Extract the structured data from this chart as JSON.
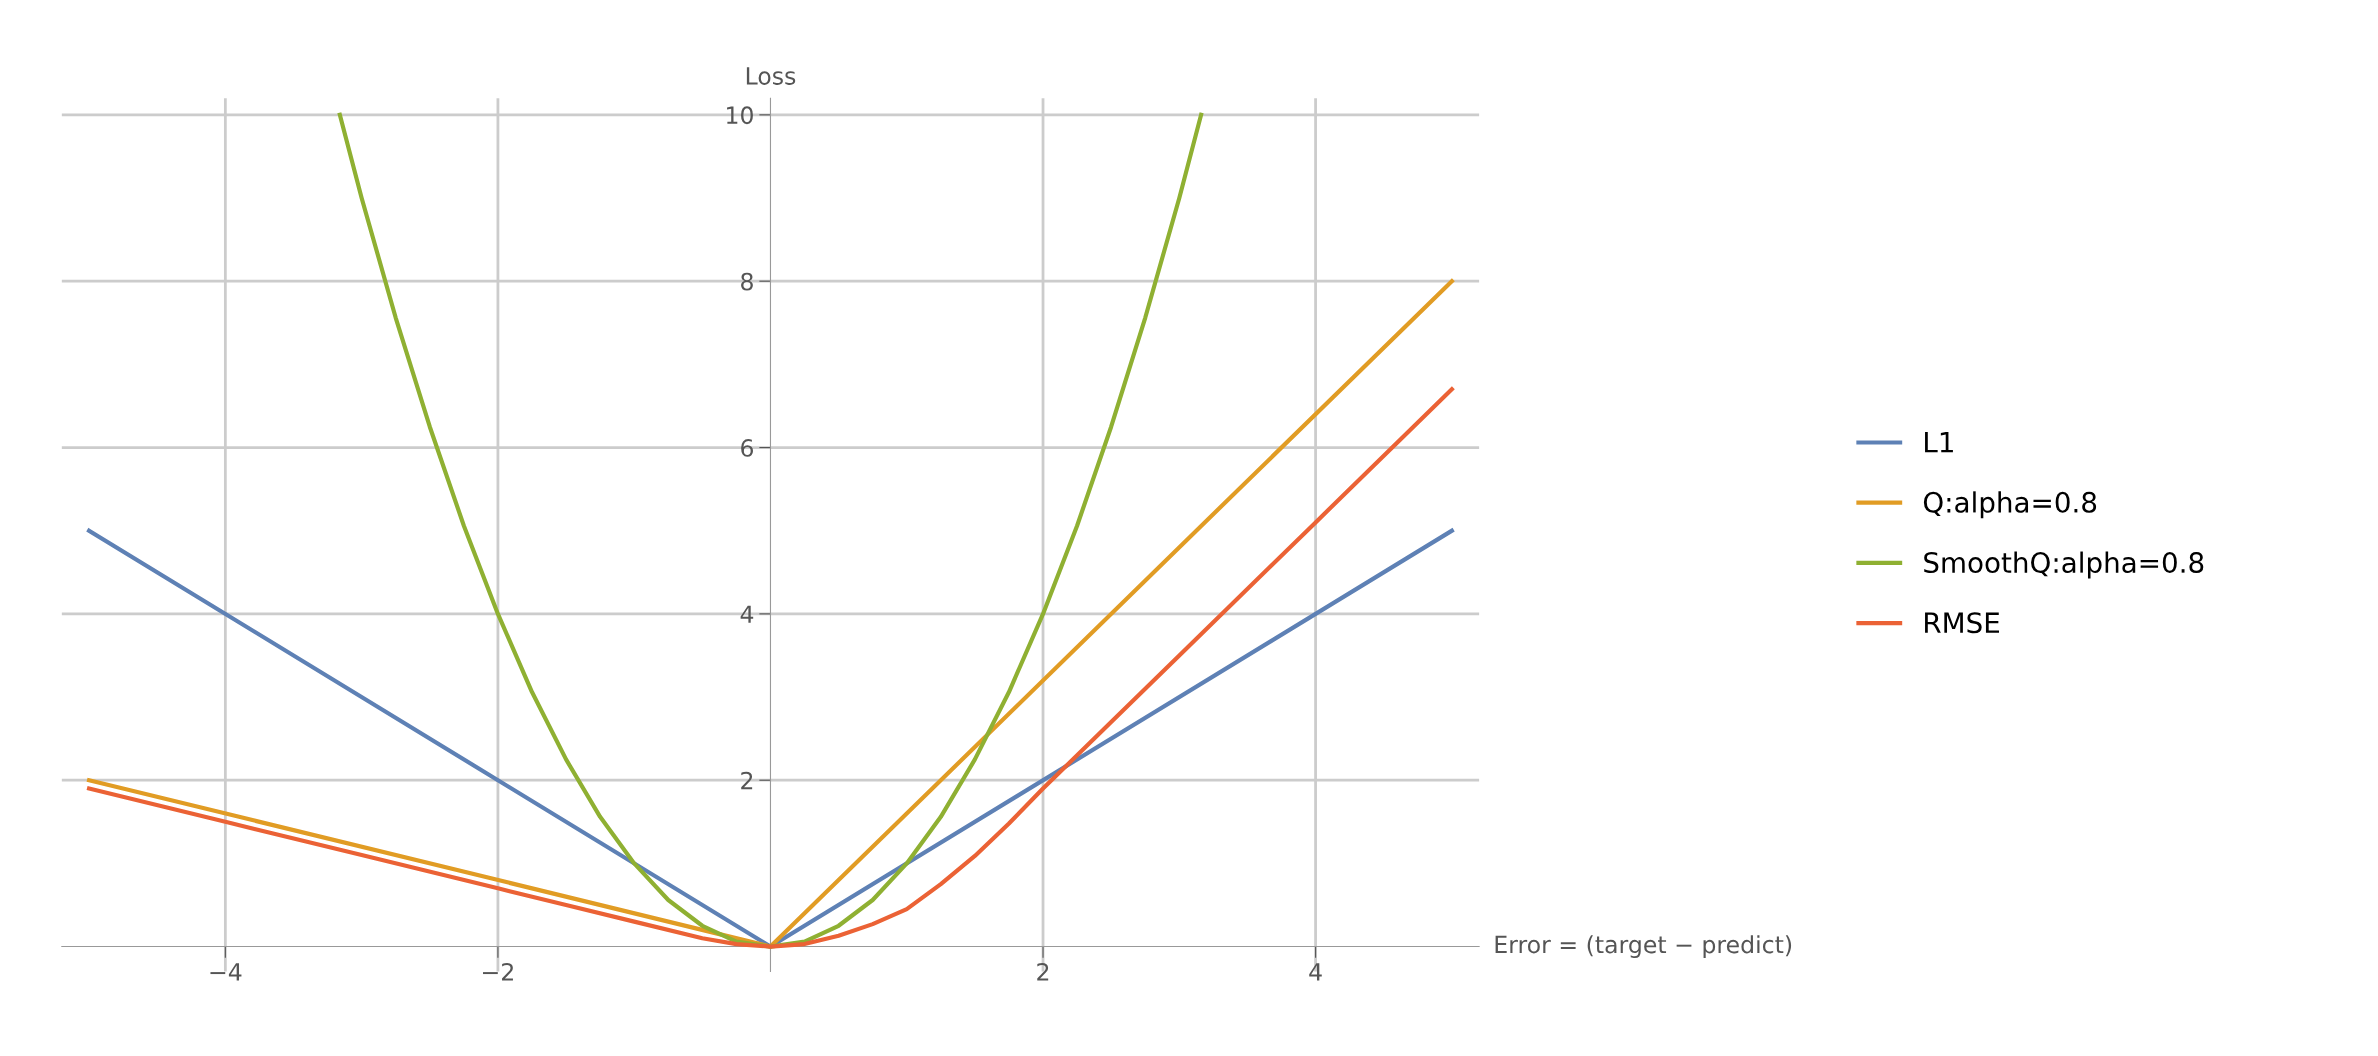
{
  "chart_data": {
    "type": "line",
    "xlabel": "Error = (target − predict)",
    "ylabel": "Loss",
    "xlim": [
      -5.2,
      5.2
    ],
    "ylim": [
      -0.3,
      10.2
    ],
    "xticks": [
      {
        "value": -4,
        "label": "−4"
      },
      {
        "value": -2,
        "label": "−2"
      },
      2,
      4
    ],
    "yticks": [
      2,
      4,
      6,
      8,
      10
    ],
    "grid": true,
    "legend": "right",
    "marker": "none",
    "line_style": "solid",
    "series": [
      {
        "name": "L1",
        "color": "#5e81b5",
        "x": [
          -5,
          0,
          5
        ],
        "values": [
          5,
          0,
          5
        ]
      },
      {
        "name": "Q:alpha=0.8",
        "color": "#e19c24",
        "x": [
          -5,
          0,
          5
        ],
        "values": [
          2,
          0,
          8
        ]
      },
      {
        "name": "SmoothQ:alpha=0.8",
        "color": "#8fb032",
        "x": [
          -3.16,
          -3,
          -2.75,
          -2.5,
          -2.25,
          -2,
          -1.75,
          -1.5,
          -1.25,
          -1,
          -0.75,
          -0.5,
          -0.25,
          0,
          0.25,
          0.5,
          0.75,
          1,
          1.25,
          1.5,
          1.75,
          2,
          2.25,
          2.5,
          2.75,
          3,
          3.16
        ],
        "values": [
          10,
          9,
          7.56,
          6.25,
          5.06,
          4,
          3.06,
          2.25,
          1.56,
          1,
          0.56,
          0.25,
          0.06,
          0,
          0.06,
          0.25,
          0.56,
          1,
          1.56,
          2.25,
          3.06,
          4,
          5.06,
          6.25,
          7.56,
          9,
          10
        ]
      },
      {
        "name": "RMSE",
        "color": "#eb6235",
        "x": [
          -5,
          -4,
          -3,
          -2,
          -1.5,
          -1,
          -0.5,
          -0.25,
          0,
          0.25,
          0.5,
          0.75,
          1,
          1.25,
          1.5,
          1.75,
          2,
          2.5,
          3,
          4,
          5
        ],
        "values": [
          1.9,
          1.5,
          1.1,
          0.7,
          0.5,
          0.3,
          0.1,
          0.03,
          0,
          0.03,
          0.13,
          0.27,
          0.45,
          0.75,
          1.09,
          1.48,
          1.9,
          2.7,
          3.5,
          5.1,
          6.7
        ]
      }
    ]
  }
}
